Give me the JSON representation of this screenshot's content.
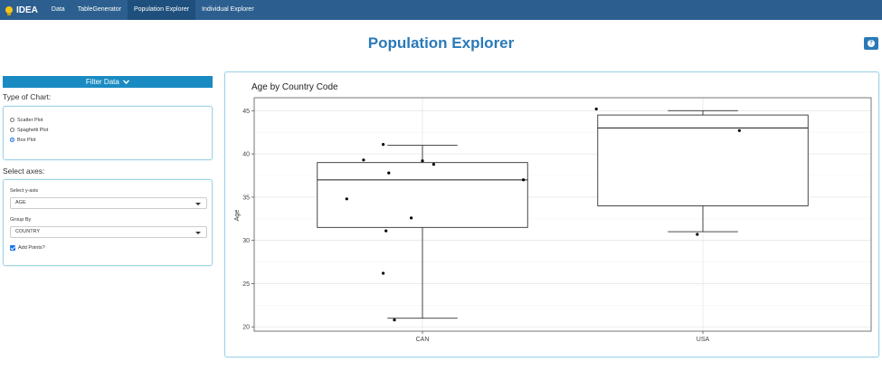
{
  "navbar": {
    "brand": "IDEA",
    "items": [
      {
        "label": "Data",
        "active": false
      },
      {
        "label": "TableGenerator",
        "active": false
      },
      {
        "label": "Population Explorer",
        "active": true
      },
      {
        "label": "Individual Explorer",
        "active": false
      }
    ]
  },
  "page": {
    "title": "Population Explorer",
    "help_icon": "question-circle-icon"
  },
  "sidebar": {
    "filter_label": "Filter Data",
    "chart_type_title": "Type of Chart:",
    "chart_types": [
      {
        "label": "Scatter Plot",
        "selected": false
      },
      {
        "label": "Spaghetti Plot",
        "selected": false
      },
      {
        "label": "Box Plot",
        "selected": true
      }
    ],
    "axes_title": "Select axes:",
    "yaxis_label": "Select y-axis",
    "yaxis_value": "AGE",
    "groupby_label": "Group By",
    "groupby_value": "COUNTRY",
    "add_points_label": "Add Points?",
    "add_points_checked": true
  },
  "chart_data": {
    "type": "box",
    "title": "Age by Country Code",
    "xlabel": "",
    "ylabel": "Age",
    "categories": [
      "CAN",
      "USA"
    ],
    "ylim": [
      19.5,
      46.5
    ],
    "yticks": [
      20,
      25,
      30,
      35,
      40,
      45
    ],
    "grid": true,
    "boxes": [
      {
        "category": "CAN",
        "whisker_low": 21,
        "q1": 31.5,
        "median": 37,
        "q3": 39,
        "whisker_high": 41
      },
      {
        "category": "USA",
        "whisker_low": 31,
        "q1": 34,
        "median": 43,
        "q3": 44.5,
        "whisker_high": 45
      }
    ],
    "points": [
      {
        "category": "CAN",
        "x": 0.73,
        "y": 34.8
      },
      {
        "category": "CAN",
        "x": 0.79,
        "y": 39.3
      },
      {
        "category": "CAN",
        "x": 0.86,
        "y": 41.1
      },
      {
        "category": "CAN",
        "x": 0.87,
        "y": 31.1
      },
      {
        "category": "CAN",
        "x": 0.86,
        "y": 26.2
      },
      {
        "category": "CAN",
        "x": 0.88,
        "y": 37.8
      },
      {
        "category": "CAN",
        "x": 0.9,
        "y": 20.8
      },
      {
        "category": "CAN",
        "x": 0.96,
        "y": 32.6
      },
      {
        "category": "CAN",
        "x": 1.0,
        "y": 39.2
      },
      {
        "category": "CAN",
        "x": 1.04,
        "y": 38.8
      },
      {
        "category": "CAN",
        "x": 1.36,
        "y": 37.0
      },
      {
        "category": "USA",
        "x": 1.62,
        "y": 45.2
      },
      {
        "category": "USA",
        "x": 1.98,
        "y": 30.7
      },
      {
        "category": "USA",
        "x": 2.13,
        "y": 42.7
      }
    ]
  }
}
